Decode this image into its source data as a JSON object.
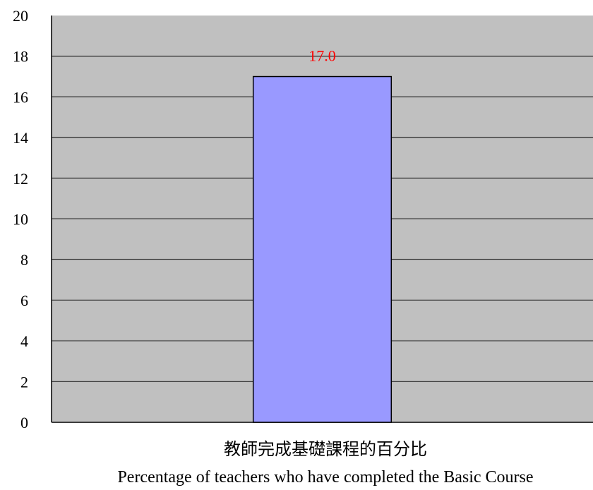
{
  "chart_data": {
    "type": "bar",
    "categories": [
      "教師完成基礎課程的百分比\nPercentage of teachers who have completed the Basic Course"
    ],
    "category_lines": [
      "教師完成基礎課程的百分比",
      "Percentage of teachers who have completed the Basic Course"
    ],
    "values": [
      17.0
    ],
    "data_labels": [
      "17.0"
    ],
    "yticks": [
      "0",
      "2",
      "4",
      "6",
      "8",
      "10",
      "12",
      "14",
      "16",
      "18",
      "20"
    ],
    "ylim": [
      0,
      20
    ],
    "grid": true,
    "legend": "none",
    "colors": {
      "plot_background": "#c0c0c0",
      "bar_fill": "#9999ff",
      "bar_stroke": "#000000",
      "gridline": "#000000",
      "data_label": "#ff0000"
    }
  }
}
